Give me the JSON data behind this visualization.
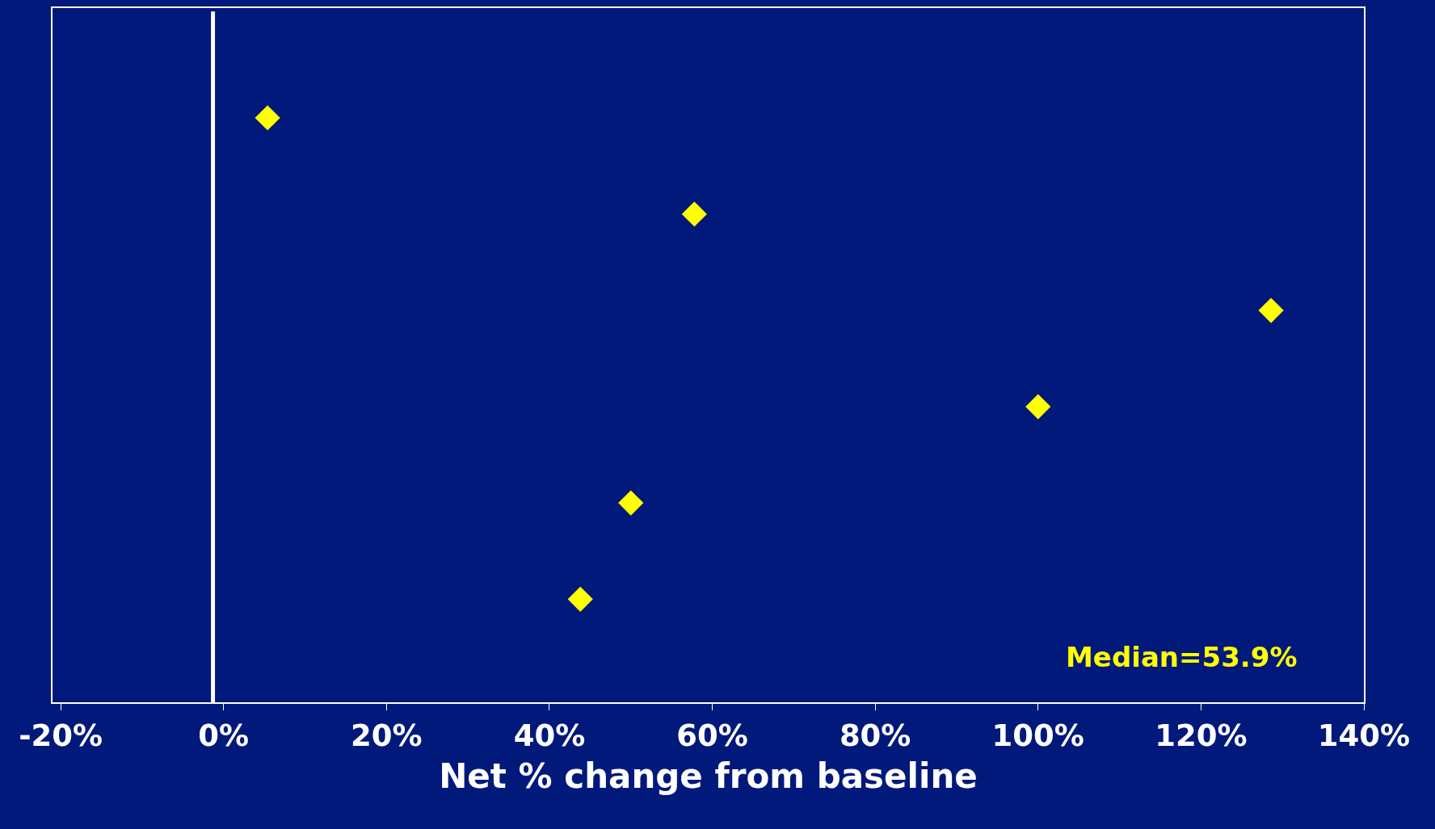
{
  "chart_data": {
    "type": "scatter",
    "orientation": "horizontal",
    "xlabel": "Net % change from baseline",
    "categories": [
      null,
      null,
      null,
      null,
      null,
      null
    ],
    "values": [
      5.4,
      57.8,
      128.6,
      100,
      50,
      43.8
    ],
    "color": "#ffff00",
    "marker": "diamond",
    "grid": false,
    "tick_labels": "x",
    "xlim": [
      -21,
      140
    ],
    "xticks": [
      {
        "value": -20,
        "label": "-20%"
      },
      {
        "value": 0,
        "label": "0%"
      },
      {
        "value": 20,
        "label": "20%"
      },
      {
        "value": 40,
        "label": "40%"
      },
      {
        "value": 60,
        "label": "60%"
      },
      {
        "value": 80,
        "label": "80%"
      },
      {
        "value": 100,
        "label": "100%"
      },
      {
        "value": 120,
        "label": "120%"
      },
      {
        "value": 140,
        "label": "140%"
      }
    ],
    "ref_lines": [
      {
        "axis": "x",
        "value": -1.3,
        "label": null,
        "color": "#ffffff"
      }
    ],
    "annotations": [
      "Median=53.9%"
    ]
  }
}
